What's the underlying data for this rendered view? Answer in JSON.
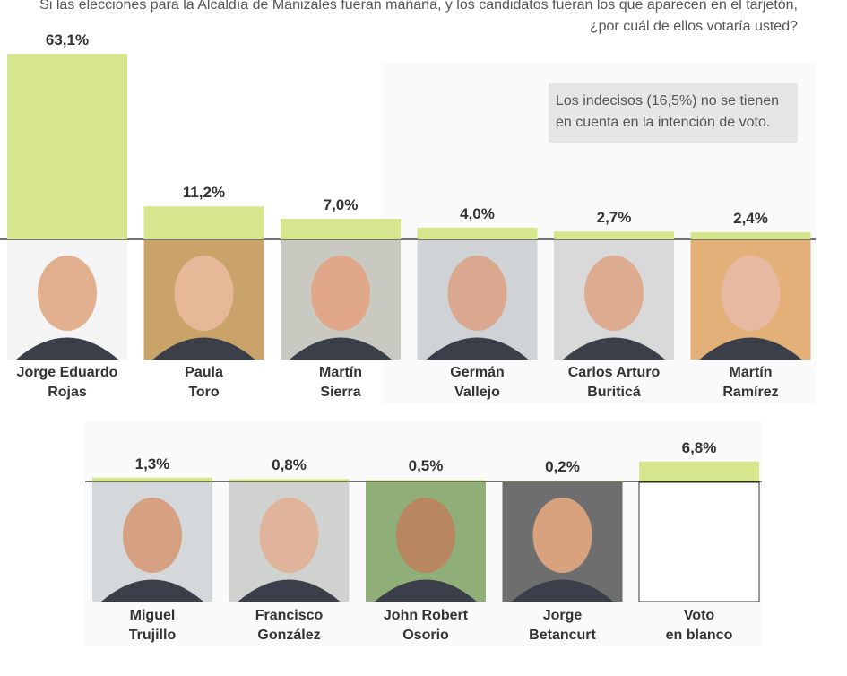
{
  "chart_data": {
    "type": "bar",
    "title": "Si las elecciones para la Alcaldía de Manizales fueran mañana, y los candidatos fueran los que aparecen en el tarjetón,\n¿por cuál de ellos votaría usted?",
    "annotation": "Los indecisos (16,5%) no se tienen\nen cuenta en la intención de voto.",
    "categories": [
      "Jorge Eduardo\nRojas",
      "Paula\nToro",
      "Martín\nSierra",
      "Germán\nVallejo",
      "Carlos Arturo\nBuriticá",
      "Martín\nRamírez",
      "Miguel\nTrujillo",
      "Francisco\nGonzález",
      "John Robert\nOsorio",
      "Jorge\nBetancurt",
      "Voto\nen blanco"
    ],
    "values": [
      63.1,
      11.2,
      7.0,
      4.0,
      2.7,
      2.4,
      1.3,
      0.8,
      0.5,
      0.2,
      6.8
    ],
    "value_labels": [
      "63,1%",
      "11,2%",
      "7,0%",
      "4,0%",
      "2,7%",
      "2,4%",
      "1,3%",
      "0,8%",
      "0,5%",
      "0,2%",
      "6,8%"
    ],
    "color": "#d6e68c"
  }
}
